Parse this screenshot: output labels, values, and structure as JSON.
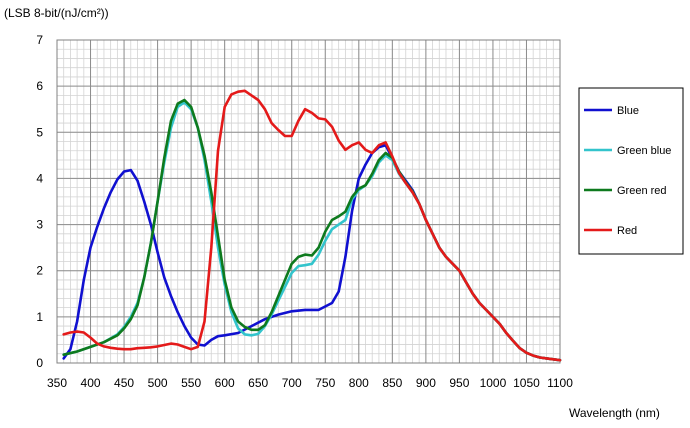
{
  "chart_data": {
    "type": "line",
    "ylabel": "(LSB 8-bit/(nJ/cm²))",
    "xlabel": "Wavelength (nm)",
    "xlim": [
      350,
      1100
    ],
    "ylim": [
      0,
      7
    ],
    "xticks": [
      350,
      400,
      450,
      500,
      550,
      600,
      650,
      700,
      750,
      800,
      850,
      900,
      950,
      1000,
      1050,
      1100
    ],
    "yticks": [
      0,
      1,
      2,
      3,
      4,
      5,
      6,
      7
    ],
    "grid": {
      "major": true,
      "minor": true,
      "minor_x_step": 10,
      "minor_y_step": 0.2
    },
    "legend_position": "right",
    "series": [
      {
        "name": "Blue",
        "color": "#1010d0",
        "points": [
          [
            360,
            0.1
          ],
          [
            370,
            0.3
          ],
          [
            380,
            0.9
          ],
          [
            390,
            1.8
          ],
          [
            400,
            2.5
          ],
          [
            410,
            2.95
          ],
          [
            420,
            3.35
          ],
          [
            430,
            3.7
          ],
          [
            440,
            3.98
          ],
          [
            450,
            4.15
          ],
          [
            460,
            4.18
          ],
          [
            470,
            3.95
          ],
          [
            480,
            3.5
          ],
          [
            490,
            3.0
          ],
          [
            500,
            2.4
          ],
          [
            510,
            1.85
          ],
          [
            520,
            1.45
          ],
          [
            530,
            1.1
          ],
          [
            540,
            0.8
          ],
          [
            550,
            0.55
          ],
          [
            560,
            0.4
          ],
          [
            570,
            0.38
          ],
          [
            580,
            0.5
          ],
          [
            590,
            0.58
          ],
          [
            600,
            0.6
          ],
          [
            620,
            0.65
          ],
          [
            640,
            0.8
          ],
          [
            660,
            0.95
          ],
          [
            680,
            1.05
          ],
          [
            700,
            1.12
          ],
          [
            720,
            1.15
          ],
          [
            740,
            1.15
          ],
          [
            760,
            1.3
          ],
          [
            770,
            1.55
          ],
          [
            780,
            2.3
          ],
          [
            790,
            3.3
          ],
          [
            800,
            4.0
          ],
          [
            810,
            4.3
          ],
          [
            820,
            4.55
          ],
          [
            830,
            4.68
          ],
          [
            840,
            4.72
          ],
          [
            850,
            4.45
          ],
          [
            860,
            4.15
          ],
          [
            870,
            3.95
          ],
          [
            880,
            3.75
          ],
          [
            890,
            3.45
          ],
          [
            900,
            3.1
          ],
          [
            910,
            2.8
          ],
          [
            920,
            2.5
          ],
          [
            930,
            2.3
          ],
          [
            940,
            2.15
          ],
          [
            950,
            2.0
          ],
          [
            960,
            1.75
          ],
          [
            970,
            1.5
          ],
          [
            980,
            1.3
          ],
          [
            990,
            1.15
          ],
          [
            1000,
            1.0
          ],
          [
            1010,
            0.85
          ],
          [
            1020,
            0.65
          ],
          [
            1030,
            0.48
          ],
          [
            1040,
            0.32
          ],
          [
            1050,
            0.22
          ],
          [
            1060,
            0.16
          ],
          [
            1070,
            0.12
          ],
          [
            1080,
            0.1
          ],
          [
            1090,
            0.08
          ],
          [
            1100,
            0.06
          ]
        ]
      },
      {
        "name": "Green blue",
        "color": "#33c4cc",
        "points": [
          [
            360,
            0.18
          ],
          [
            380,
            0.25
          ],
          [
            400,
            0.35
          ],
          [
            420,
            0.45
          ],
          [
            440,
            0.62
          ],
          [
            450,
            0.78
          ],
          [
            460,
            1.0
          ],
          [
            470,
            1.3
          ],
          [
            480,
            1.85
          ],
          [
            490,
            2.6
          ],
          [
            500,
            3.5
          ],
          [
            510,
            4.35
          ],
          [
            520,
            5.1
          ],
          [
            530,
            5.55
          ],
          [
            540,
            5.65
          ],
          [
            550,
            5.5
          ],
          [
            560,
            5.1
          ],
          [
            570,
            4.4
          ],
          [
            580,
            3.5
          ],
          [
            590,
            2.5
          ],
          [
            600,
            1.7
          ],
          [
            610,
            1.1
          ],
          [
            620,
            0.75
          ],
          [
            630,
            0.62
          ],
          [
            640,
            0.6
          ],
          [
            650,
            0.63
          ],
          [
            660,
            0.8
          ],
          [
            670,
            1.05
          ],
          [
            680,
            1.35
          ],
          [
            690,
            1.65
          ],
          [
            700,
            1.95
          ],
          [
            710,
            2.1
          ],
          [
            720,
            2.12
          ],
          [
            730,
            2.15
          ],
          [
            740,
            2.35
          ],
          [
            750,
            2.65
          ],
          [
            760,
            2.9
          ],
          [
            770,
            3.0
          ],
          [
            780,
            3.1
          ],
          [
            790,
            3.55
          ],
          [
            800,
            3.75
          ],
          [
            810,
            3.85
          ],
          [
            820,
            4.05
          ],
          [
            830,
            4.35
          ],
          [
            840,
            4.5
          ],
          [
            850,
            4.4
          ],
          [
            860,
            4.1
          ],
          [
            870,
            3.9
          ],
          [
            880,
            3.7
          ],
          [
            890,
            3.45
          ],
          [
            900,
            3.1
          ],
          [
            910,
            2.8
          ],
          [
            920,
            2.5
          ],
          [
            930,
            2.3
          ],
          [
            940,
            2.15
          ],
          [
            950,
            2.0
          ],
          [
            960,
            1.75
          ],
          [
            970,
            1.5
          ],
          [
            980,
            1.3
          ],
          [
            990,
            1.15
          ],
          [
            1000,
            1.0
          ],
          [
            1010,
            0.85
          ],
          [
            1020,
            0.65
          ],
          [
            1030,
            0.48
          ],
          [
            1040,
            0.32
          ],
          [
            1050,
            0.22
          ],
          [
            1060,
            0.16
          ],
          [
            1070,
            0.12
          ],
          [
            1080,
            0.1
          ],
          [
            1090,
            0.08
          ],
          [
            1100,
            0.06
          ]
        ]
      },
      {
        "name": "Green red",
        "color": "#0e7a1e",
        "points": [
          [
            360,
            0.18
          ],
          [
            380,
            0.25
          ],
          [
            400,
            0.35
          ],
          [
            420,
            0.45
          ],
          [
            440,
            0.6
          ],
          [
            450,
            0.75
          ],
          [
            460,
            0.95
          ],
          [
            470,
            1.25
          ],
          [
            480,
            1.85
          ],
          [
            490,
            2.6
          ],
          [
            500,
            3.5
          ],
          [
            510,
            4.45
          ],
          [
            520,
            5.25
          ],
          [
            530,
            5.62
          ],
          [
            540,
            5.7
          ],
          [
            550,
            5.55
          ],
          [
            560,
            5.1
          ],
          [
            570,
            4.5
          ],
          [
            580,
            3.7
          ],
          [
            590,
            2.75
          ],
          [
            600,
            1.8
          ],
          [
            610,
            1.2
          ],
          [
            620,
            0.9
          ],
          [
            630,
            0.78
          ],
          [
            640,
            0.72
          ],
          [
            650,
            0.72
          ],
          [
            660,
            0.82
          ],
          [
            670,
            1.1
          ],
          [
            680,
            1.45
          ],
          [
            690,
            1.8
          ],
          [
            700,
            2.15
          ],
          [
            710,
            2.3
          ],
          [
            720,
            2.35
          ],
          [
            730,
            2.33
          ],
          [
            740,
            2.5
          ],
          [
            750,
            2.85
          ],
          [
            760,
            3.1
          ],
          [
            770,
            3.18
          ],
          [
            780,
            3.28
          ],
          [
            790,
            3.6
          ],
          [
            800,
            3.78
          ],
          [
            810,
            3.85
          ],
          [
            820,
            4.1
          ],
          [
            830,
            4.4
          ],
          [
            840,
            4.55
          ],
          [
            850,
            4.45
          ],
          [
            860,
            4.15
          ],
          [
            870,
            3.92
          ],
          [
            880,
            3.72
          ],
          [
            890,
            3.45
          ],
          [
            900,
            3.1
          ],
          [
            910,
            2.8
          ],
          [
            920,
            2.5
          ],
          [
            930,
            2.3
          ],
          [
            940,
            2.15
          ],
          [
            950,
            2.0
          ],
          [
            960,
            1.75
          ],
          [
            970,
            1.5
          ],
          [
            980,
            1.3
          ],
          [
            990,
            1.15
          ],
          [
            1000,
            1.0
          ],
          [
            1010,
            0.85
          ],
          [
            1020,
            0.65
          ],
          [
            1030,
            0.48
          ],
          [
            1040,
            0.32
          ],
          [
            1050,
            0.22
          ],
          [
            1060,
            0.16
          ],
          [
            1070,
            0.12
          ],
          [
            1080,
            0.1
          ],
          [
            1090,
            0.08
          ],
          [
            1100,
            0.06
          ]
        ]
      },
      {
        "name": "Red",
        "color": "#e41a1a",
        "points": [
          [
            360,
            0.62
          ],
          [
            370,
            0.66
          ],
          [
            380,
            0.68
          ],
          [
            390,
            0.66
          ],
          [
            400,
            0.55
          ],
          [
            410,
            0.42
          ],
          [
            420,
            0.36
          ],
          [
            430,
            0.33
          ],
          [
            440,
            0.31
          ],
          [
            450,
            0.3
          ],
          [
            460,
            0.3
          ],
          [
            470,
            0.32
          ],
          [
            480,
            0.33
          ],
          [
            490,
            0.34
          ],
          [
            500,
            0.36
          ],
          [
            510,
            0.39
          ],
          [
            520,
            0.42
          ],
          [
            530,
            0.4
          ],
          [
            540,
            0.35
          ],
          [
            550,
            0.3
          ],
          [
            560,
            0.35
          ],
          [
            570,
            0.9
          ],
          [
            580,
            2.5
          ],
          [
            590,
            4.6
          ],
          [
            600,
            5.55
          ],
          [
            610,
            5.82
          ],
          [
            620,
            5.88
          ],
          [
            630,
            5.9
          ],
          [
            640,
            5.8
          ],
          [
            650,
            5.7
          ],
          [
            660,
            5.5
          ],
          [
            670,
            5.2
          ],
          [
            680,
            5.05
          ],
          [
            690,
            4.92
          ],
          [
            700,
            4.92
          ],
          [
            710,
            5.25
          ],
          [
            720,
            5.5
          ],
          [
            730,
            5.42
          ],
          [
            740,
            5.3
          ],
          [
            750,
            5.28
          ],
          [
            760,
            5.12
          ],
          [
            770,
            4.82
          ],
          [
            780,
            4.62
          ],
          [
            790,
            4.72
          ],
          [
            800,
            4.78
          ],
          [
            810,
            4.62
          ],
          [
            820,
            4.55
          ],
          [
            830,
            4.72
          ],
          [
            840,
            4.78
          ],
          [
            850,
            4.48
          ],
          [
            860,
            4.12
          ],
          [
            870,
            3.9
          ],
          [
            880,
            3.7
          ],
          [
            890,
            3.45
          ],
          [
            900,
            3.1
          ],
          [
            910,
            2.8
          ],
          [
            920,
            2.5
          ],
          [
            930,
            2.3
          ],
          [
            940,
            2.15
          ],
          [
            950,
            2.0
          ],
          [
            960,
            1.75
          ],
          [
            970,
            1.5
          ],
          [
            980,
            1.3
          ],
          [
            990,
            1.15
          ],
          [
            1000,
            1.0
          ],
          [
            1010,
            0.85
          ],
          [
            1020,
            0.65
          ],
          [
            1030,
            0.48
          ],
          [
            1040,
            0.32
          ],
          [
            1050,
            0.22
          ],
          [
            1060,
            0.16
          ],
          [
            1070,
            0.12
          ],
          [
            1080,
            0.1
          ],
          [
            1090,
            0.08
          ],
          [
            1100,
            0.06
          ]
        ]
      }
    ]
  }
}
